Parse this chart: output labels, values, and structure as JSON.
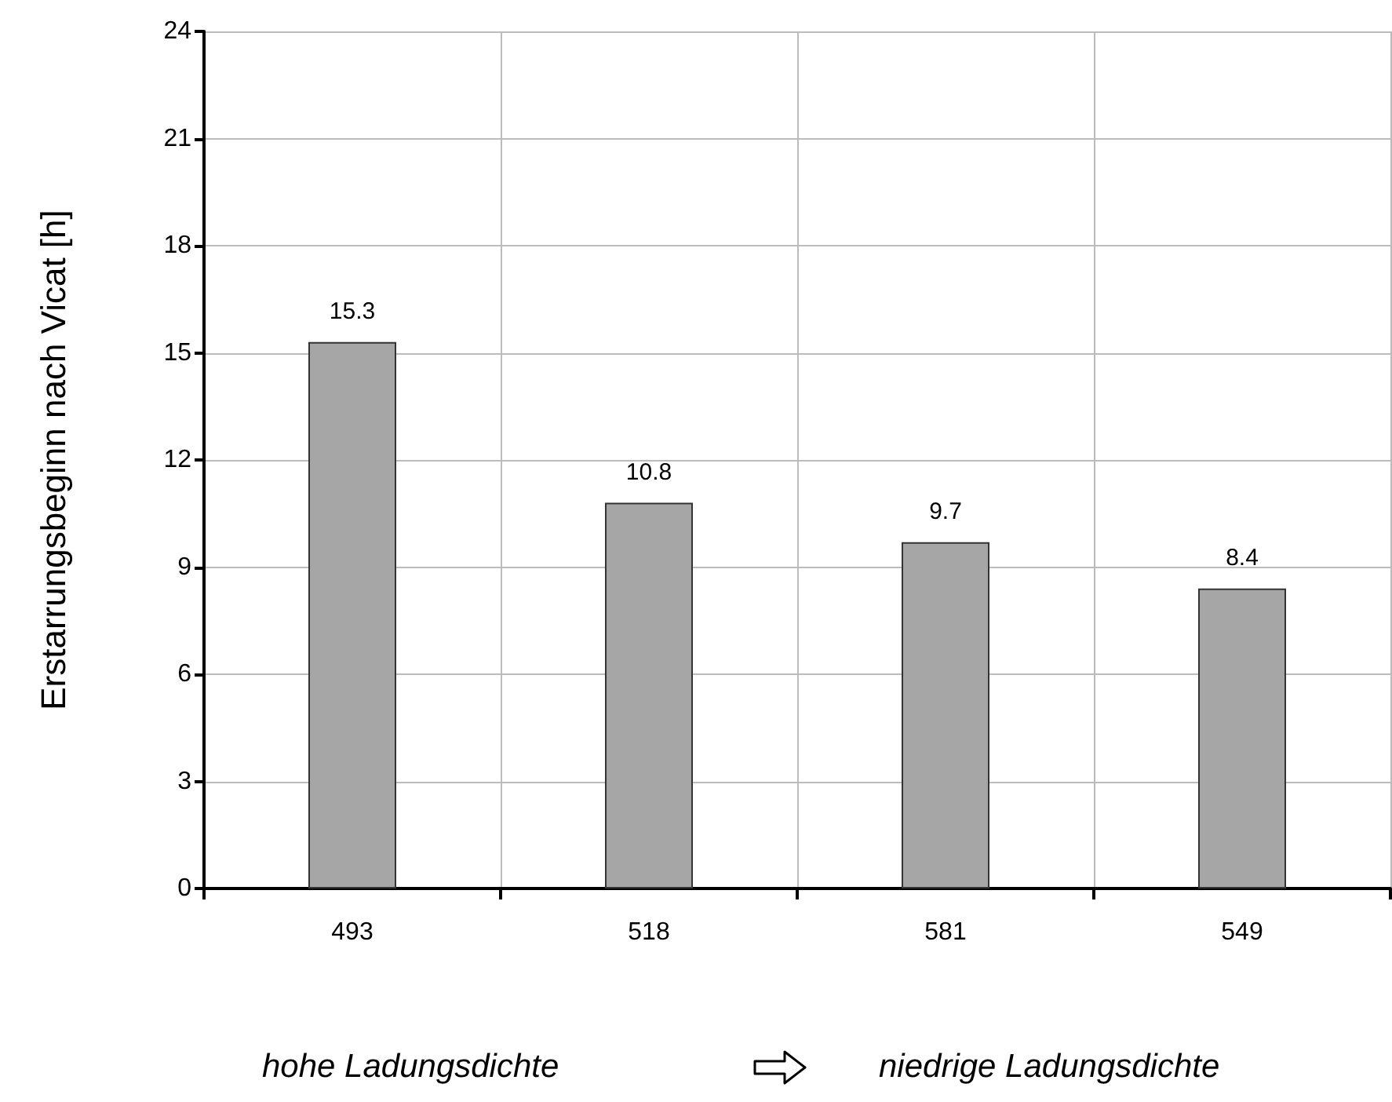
{
  "chart_data": {
    "type": "bar",
    "ylabel": "Erstarrungsbeginn nach Vicat [h]",
    "categories": [
      "493",
      "518",
      "581",
      "549"
    ],
    "values": [
      15.3,
      10.8,
      9.7,
      8.4
    ],
    "color": "#a6a6a6",
    "ylim": [
      0,
      24
    ],
    "yticks": [
      0,
      3,
      6,
      9,
      12,
      15,
      18,
      21,
      24
    ],
    "grid": true,
    "data_labels": true,
    "annotations": [
      "hohe Ladungsdichte",
      "niedrige Ladungsdichte"
    ]
  }
}
